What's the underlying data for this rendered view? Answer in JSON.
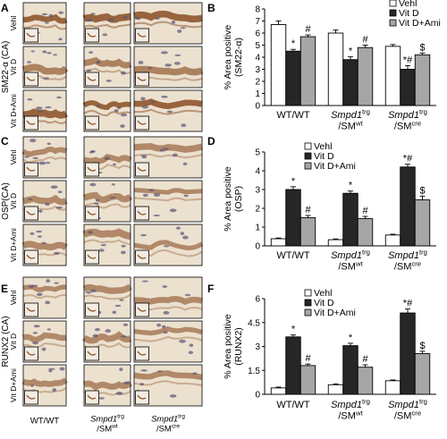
{
  "panel_letters": [
    "A",
    "B",
    "C",
    "D",
    "E",
    "F"
  ],
  "micrograph_rows": [
    "Vehl",
    "Vit D",
    "Vit D+Ami"
  ],
  "micrograph_stains": [
    "SM22-α (CA)",
    "OSP(CA)",
    "RUNX2 (CA)"
  ],
  "micrograph_columns": [
    {
      "line1": "WT/WT",
      "gene": "",
      "gene_sup": "",
      "sub": "",
      "sub_sup": ""
    },
    {
      "line1": "",
      "gene": "Smpd1",
      "gene_sup": "trg",
      "sub": "/SM",
      "sub_sup": "wt"
    },
    {
      "line1": "",
      "gene": "Smpd1",
      "gene_sup": "trg",
      "sub": "/SM",
      "sub_sup": "cre"
    }
  ],
  "chart_groups": [
    {
      "line1": "WT/WT",
      "gene": "",
      "gene_sup": "",
      "sub": "",
      "sub_sup": ""
    },
    {
      "line1": "",
      "gene": "Smpd1",
      "gene_sup": "trg",
      "sub": "/SM",
      "sub_sup": "wt"
    },
    {
      "line1": "",
      "gene": "Smpd1",
      "gene_sup": "trg",
      "sub": "/SM",
      "sub_sup": "cre"
    }
  ],
  "colors": {
    "vehl": "#ffffff",
    "vitd": "#262626",
    "vitd_ami": "#a6a6a6",
    "axis": "#000000"
  },
  "tissue_colors": {
    "background": "#ece1cf",
    "stain": "#8a4e24",
    "nuclei": "#5b5275",
    "light": "#f2ece3"
  },
  "chart_data": [
    {
      "panel": "B",
      "type": "bar",
      "ylabel": "% Area positive (SM22-α)",
      "ylim": [
        0,
        8
      ],
      "yticks": [
        "0",
        "1",
        "2",
        "3",
        "4",
        "5",
        "6",
        "7",
        "8"
      ],
      "legend_position": "top-right",
      "series": [
        {
          "name": "Vehl",
          "values": [
            6.7,
            6.0,
            4.9
          ],
          "errors": [
            0.3,
            0.25,
            0.15
          ]
        },
        {
          "name": "Vit D",
          "values": [
            4.5,
            3.8,
            3.0
          ],
          "errors": [
            0.15,
            0.25,
            0.3
          ]
        },
        {
          "name": "Vit D+Ami",
          "values": [
            5.7,
            4.8,
            4.2
          ],
          "errors": [
            0.15,
            0.2,
            0.15
          ]
        }
      ],
      "annotations": [
        {
          "group": 0,
          "series": 1,
          "text": "*"
        },
        {
          "group": 0,
          "series": 2,
          "text": "#"
        },
        {
          "group": 1,
          "series": 1,
          "text": "*"
        },
        {
          "group": 1,
          "series": 2,
          "text": "#"
        },
        {
          "group": 2,
          "series": 1,
          "text": "*#"
        },
        {
          "group": 2,
          "series": 2,
          "text": "$"
        }
      ]
    },
    {
      "panel": "D",
      "type": "bar",
      "ylabel": "% Area positive (OSP)",
      "ylim": [
        0,
        5
      ],
      "yticks": [
        "0",
        "1",
        "2",
        "3",
        "4",
        "5"
      ],
      "legend_position": "top-left",
      "series": [
        {
          "name": "Vehl",
          "values": [
            0.38,
            0.33,
            0.58
          ],
          "errors": [
            0.04,
            0.04,
            0.04
          ]
        },
        {
          "name": "Vit D",
          "values": [
            3.0,
            2.8,
            4.2
          ],
          "errors": [
            0.15,
            0.12,
            0.15
          ]
        },
        {
          "name": "Vit D+Ami",
          "values": [
            1.5,
            1.45,
            2.45
          ],
          "errors": [
            0.12,
            0.12,
            0.2
          ]
        }
      ],
      "annotations": [
        {
          "group": 0,
          "series": 1,
          "text": "*"
        },
        {
          "group": 0,
          "series": 2,
          "text": "#"
        },
        {
          "group": 1,
          "series": 1,
          "text": "*"
        },
        {
          "group": 1,
          "series": 2,
          "text": "#"
        },
        {
          "group": 2,
          "series": 1,
          "text": "*#"
        },
        {
          "group": 2,
          "series": 2,
          "text": "$"
        }
      ]
    },
    {
      "panel": "F",
      "type": "bar",
      "ylabel": "% Area positive (RUNX2)",
      "ylim": [
        0,
        6
      ],
      "yticks": [
        "0",
        "1.5",
        "3",
        "4.5",
        "6"
      ],
      "legend_position": "top-left",
      "series": [
        {
          "name": "Vehl",
          "values": [
            0.4,
            0.6,
            0.85
          ],
          "errors": [
            0.05,
            0.05,
            0.05
          ]
        },
        {
          "name": "Vit D",
          "values": [
            3.6,
            3.05,
            5.1
          ],
          "errors": [
            0.12,
            0.15,
            0.25
          ]
        },
        {
          "name": "Vit D+Ami",
          "values": [
            1.8,
            1.7,
            2.55
          ],
          "errors": [
            0.1,
            0.15,
            0.15
          ]
        }
      ],
      "annotations": [
        {
          "group": 0,
          "series": 1,
          "text": "*"
        },
        {
          "group": 0,
          "series": 2,
          "text": "#"
        },
        {
          "group": 1,
          "series": 1,
          "text": "*"
        },
        {
          "group": 1,
          "series": 2,
          "text": "#"
        },
        {
          "group": 2,
          "series": 1,
          "text": "*#"
        },
        {
          "group": 2,
          "series": 2,
          "text": "$"
        }
      ]
    }
  ]
}
